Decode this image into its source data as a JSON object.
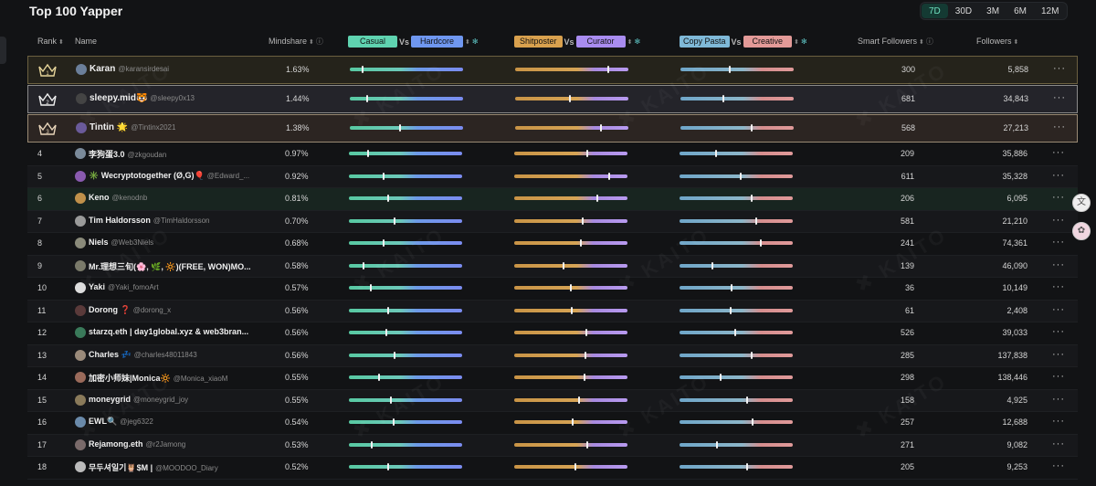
{
  "title": "Top 100 Yapper",
  "periods": [
    {
      "label": "7D",
      "active": true
    },
    {
      "label": "30D",
      "active": false
    },
    {
      "label": "3M",
      "active": false
    },
    {
      "label": "6M",
      "active": false
    },
    {
      "label": "12M",
      "active": false
    }
  ],
  "headers": {
    "rank": "Rank",
    "name": "Name",
    "mindshare": "Mindshare",
    "casual": "Casual",
    "vs": "Vs",
    "hardcore": "Hardcore",
    "shitposter": "Shitposter",
    "curator": "Curator",
    "copypasta": "Copy Pasta",
    "creative": "Creative",
    "smart_followers": "Smart Followers",
    "followers": "Followers",
    "sort_icon": "sort-icon",
    "info_icon": "info-icon",
    "settings_icon": "settings-icon"
  },
  "pill_colors": {
    "casual": "#5fd3b0",
    "hardcore": "#6f97f0",
    "shitposter": "#d9a14e",
    "curator": "#a98cf0",
    "copypasta": "#7fb9d8",
    "creative": "#e39a98"
  },
  "more_label": "···",
  "rows": [
    {
      "rank": "1",
      "name": "Karan",
      "handle": "@karansirdesai",
      "mindshare": "1.63%",
      "m": [
        0.11,
        0.83,
        0.43
      ],
      "smart": "300",
      "followers": "5,858",
      "avatar": "#6b7f9a"
    },
    {
      "rank": "2",
      "name": "sleepy.mid🐯",
      "handle": "@sleepy0x13",
      "mindshare": "1.44%",
      "m": [
        0.15,
        0.48,
        0.38
      ],
      "smart": "681",
      "followers": "34,843",
      "avatar": "#444"
    },
    {
      "rank": "3",
      "name": "Tintin 🌟",
      "handle": "@Tintinx2021",
      "mindshare": "1.38%",
      "m": [
        0.44,
        0.76,
        0.63
      ],
      "smart": "568",
      "followers": "27,213",
      "avatar": "#6a5a9a"
    },
    {
      "rank": "4",
      "name": "李狗蛋3.0",
      "handle": "@zkgoudan",
      "mindshare": "0.97%",
      "m": [
        0.16,
        0.65,
        0.32
      ],
      "smart": "209",
      "followers": "35,886",
      "avatar": "#7a8a9a"
    },
    {
      "rank": "5",
      "name": "✳️ Wecryptotogether (Ø,G)🎈",
      "handle": "@Edward_...",
      "mindshare": "0.92%",
      "m": [
        0.3,
        0.84,
        0.54
      ],
      "smart": "611",
      "followers": "35,328",
      "avatar": "#8a5ab0"
    },
    {
      "rank": "6",
      "name": "Keno",
      "handle": "@kenodnb",
      "mindshare": "0.81%",
      "m": [
        0.34,
        0.74,
        0.64
      ],
      "smart": "206",
      "followers": "6,095",
      "avatar": "#c0904a"
    },
    {
      "rank": "7",
      "name": "Tim Haldorsson",
      "handle": "@TimHaldorsson",
      "mindshare": "0.70%",
      "m": [
        0.4,
        0.61,
        0.68
      ],
      "smart": "581",
      "followers": "21,210",
      "avatar": "#9a9a9a"
    },
    {
      "rank": "8",
      "name": "Niels",
      "handle": "@Web3Niels",
      "mindshare": "0.68%",
      "m": [
        0.3,
        0.59,
        0.72
      ],
      "smart": "241",
      "followers": "74,361",
      "avatar": "#8a8a7a"
    },
    {
      "rank": "9",
      "name": "Mr.理想三旬(🌸, 🌿, 🔆)(FREE, WON)MO...",
      "handle": "",
      "mindshare": "0.58%",
      "m": [
        0.12,
        0.43,
        0.29
      ],
      "smart": "139",
      "followers": "46,090",
      "avatar": "#7a7a6a"
    },
    {
      "rank": "10",
      "name": "Yaki",
      "handle": "@Yaki_fomoArt",
      "mindshare": "0.57%",
      "m": [
        0.19,
        0.5,
        0.46
      ],
      "smart": "36",
      "followers": "10,149",
      "avatar": "#ddd"
    },
    {
      "rank": "11",
      "name": "Dorong ❓",
      "handle": "@dorong_x",
      "mindshare": "0.56%",
      "m": [
        0.34,
        0.51,
        0.45
      ],
      "smart": "61",
      "followers": "2,408",
      "avatar": "#5a3a3a"
    },
    {
      "rank": "12",
      "name": "starzq.eth | day1global.xyz & web3bran...",
      "handle": "",
      "mindshare": "0.56%",
      "m": [
        0.33,
        0.64,
        0.49
      ],
      "smart": "526",
      "followers": "39,033",
      "avatar": "#3a7a5a"
    },
    {
      "rank": "13",
      "name": "Charles 💤",
      "handle": "@charles48011843",
      "mindshare": "0.56%",
      "m": [
        0.4,
        0.63,
        0.64
      ],
      "smart": "285",
      "followers": "137,838",
      "avatar": "#9a8a7a"
    },
    {
      "rank": "14",
      "name": "加密小师妹|Monica🔆",
      "handle": "@Monica_xiaoM",
      "mindshare": "0.55%",
      "m": [
        0.26,
        0.62,
        0.36
      ],
      "smart": "298",
      "followers": "138,446",
      "avatar": "#9a6a5a"
    },
    {
      "rank": "15",
      "name": "moneygrid",
      "handle": "@moneygrid_joy",
      "mindshare": "0.55%",
      "m": [
        0.37,
        0.57,
        0.6
      ],
      "smart": "158",
      "followers": "4,925",
      "avatar": "#8a7a5a"
    },
    {
      "rank": "16",
      "name": "EWL🔍",
      "handle": "@jeg6322",
      "mindshare": "0.54%",
      "m": [
        0.39,
        0.52,
        0.65
      ],
      "smart": "257",
      "followers": "12,688",
      "avatar": "#6a8aaa"
    },
    {
      "rank": "17",
      "name": "Rejamong.eth",
      "handle": "@r2Jamong",
      "mindshare": "0.53%",
      "m": [
        0.2,
        0.65,
        0.33
      ],
      "smart": "271",
      "followers": "9,082",
      "avatar": "#7a6a6a"
    },
    {
      "rank": "18",
      "name": "무두셔일기🦉$M |",
      "handle": "@MOODOO_Diary",
      "mindshare": "0.52%",
      "m": [
        0.34,
        0.54,
        0.6
      ],
      "smart": "205",
      "followers": "9,253",
      "avatar": "#bbb"
    }
  ]
}
